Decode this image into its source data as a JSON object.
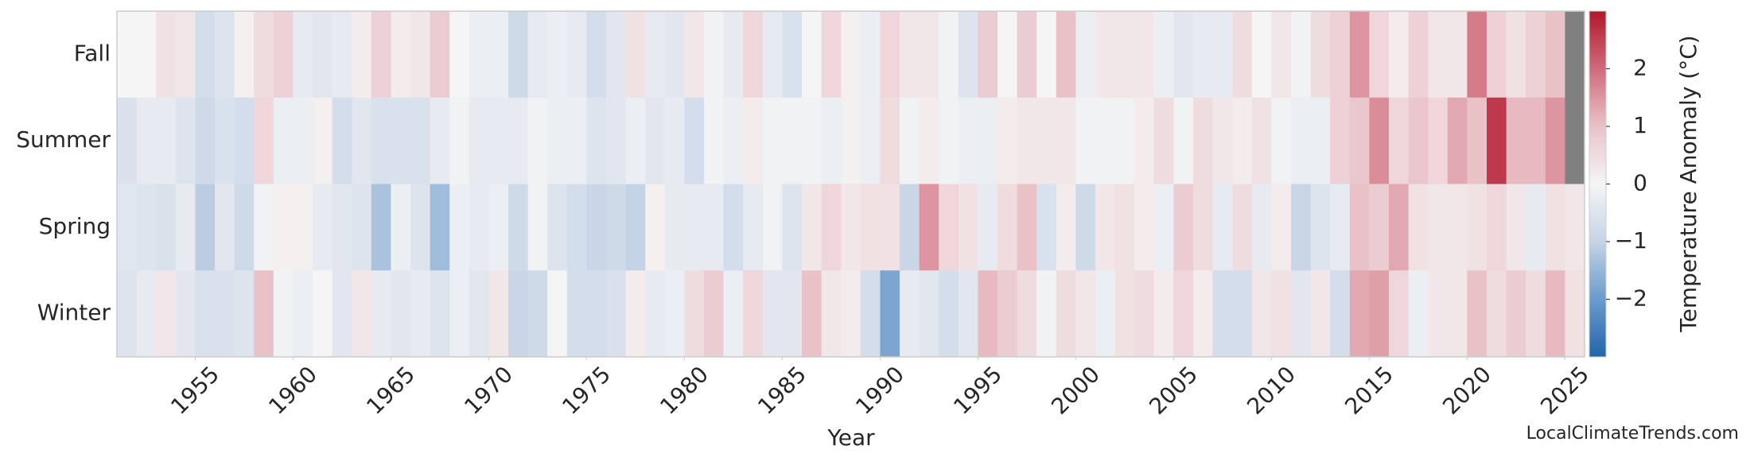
{
  "chart_data": {
    "type": "heatmap",
    "xlabel": "Year",
    "colorbar_label": "Temperature Anomaly (°C)",
    "watermark": "LocalClimateTrends.com",
    "x": [
      1951,
      1952,
      1953,
      1954,
      1955,
      1956,
      1957,
      1958,
      1959,
      1960,
      1961,
      1962,
      1963,
      1964,
      1965,
      1966,
      1967,
      1968,
      1969,
      1970,
      1971,
      1972,
      1973,
      1974,
      1975,
      1976,
      1977,
      1978,
      1979,
      1980,
      1981,
      1982,
      1983,
      1984,
      1985,
      1986,
      1987,
      1988,
      1989,
      1990,
      1991,
      1992,
      1993,
      1994,
      1995,
      1996,
      1997,
      1998,
      1999,
      2000,
      2001,
      2002,
      2003,
      2004,
      2005,
      2006,
      2007,
      2008,
      2009,
      2010,
      2011,
      2012,
      2013,
      2014,
      2015,
      2016,
      2017,
      2018,
      2019,
      2020,
      2021,
      2022,
      2023,
      2024,
      2025
    ],
    "xlim": [
      1951,
      2026
    ],
    "xticks": [
      1955,
      1960,
      1965,
      1970,
      1975,
      1980,
      1985,
      1990,
      1995,
      2000,
      2005,
      2010,
      2015,
      2020,
      2025
    ],
    "rows": [
      {
        "name": "Fall",
        "values": [
          0.0,
          0.0,
          0.4,
          0.3,
          -0.7,
          -0.5,
          0.1,
          0.5,
          0.7,
          -0.3,
          -0.4,
          -0.3,
          0.2,
          0.7,
          0.2,
          0.3,
          0.8,
          0.0,
          -0.2,
          -0.2,
          -0.8,
          -0.3,
          -0.2,
          -0.3,
          -0.7,
          -0.4,
          0.4,
          -0.3,
          -0.4,
          0.3,
          -0.1,
          -0.3,
          0.6,
          -0.3,
          -0.6,
          0.0,
          0.6,
          0.1,
          -0.2,
          0.6,
          0.3,
          0.3,
          -0.1,
          -0.5,
          0.8,
          0.0,
          0.8,
          0.0,
          1.0,
          -0.2,
          0.3,
          0.3,
          0.3,
          -0.2,
          -0.4,
          -0.3,
          -0.3,
          0.5,
          0.0,
          0.3,
          -0.1,
          0.5,
          0.7,
          1.5,
          0.6,
          0.2,
          0.7,
          0.3,
          0.3,
          1.8,
          0.7,
          0.4,
          0.7,
          1.0,
          null
        ]
      },
      {
        "name": "Summer",
        "values": [
          -0.6,
          -0.3,
          -0.3,
          -0.5,
          -0.8,
          -0.6,
          -0.7,
          0.6,
          -0.2,
          -0.2,
          0.1,
          -0.7,
          -0.4,
          -0.6,
          -0.6,
          -0.6,
          -0.3,
          -0.1,
          -0.3,
          -0.3,
          -0.3,
          -0.1,
          -0.2,
          -0.2,
          -0.5,
          -0.4,
          -0.2,
          -0.4,
          -0.3,
          -0.7,
          -0.1,
          -0.2,
          0.2,
          -0.1,
          -0.1,
          -0.1,
          -0.2,
          0.1,
          -0.2,
          0.5,
          -0.1,
          0.2,
          -0.1,
          -0.2,
          -0.2,
          0.2,
          0.3,
          0.3,
          0.3,
          -0.1,
          -0.1,
          -0.1,
          0.2,
          0.5,
          -0.1,
          0.5,
          0.3,
          0.2,
          0.4,
          -0.1,
          -0.2,
          -0.2,
          0.7,
          0.9,
          1.6,
          0.6,
          0.9,
          0.6,
          1.3,
          1.0,
          2.6,
          1.1,
          1.1,
          1.5,
          null
        ]
      },
      {
        "name": "Spring",
        "values": [
          -0.4,
          -0.5,
          -0.6,
          -0.3,
          -1.1,
          -0.4,
          -0.8,
          -0.1,
          0.1,
          0.1,
          -0.3,
          -0.4,
          -0.5,
          -1.3,
          -0.2,
          -0.5,
          -1.4,
          -0.2,
          -0.3,
          -0.2,
          -0.8,
          -0.1,
          -0.5,
          -0.7,
          -0.9,
          -0.8,
          -1.0,
          0.1,
          -0.3,
          -0.3,
          -0.3,
          -0.7,
          -0.3,
          -0.1,
          -0.5,
          0.3,
          0.6,
          0.3,
          0.4,
          0.4,
          -0.9,
          1.5,
          0.6,
          0.4,
          -0.3,
          0.5,
          1.0,
          -0.6,
          0.2,
          -0.8,
          0.3,
          0.4,
          0.2,
          -0.2,
          0.8,
          0.5,
          -0.3,
          0.5,
          -0.3,
          0.2,
          -0.9,
          -0.5,
          -0.3,
          1.0,
          0.8,
          1.3,
          0.4,
          0.3,
          0.3,
          0.4,
          0.6,
          0.3,
          -0.3,
          0.4,
          0.3
        ]
      },
      {
        "name": "Winter",
        "values": [
          -0.5,
          -0.3,
          0.3,
          -0.4,
          -0.6,
          -0.6,
          -0.5,
          1.0,
          -0.1,
          -0.2,
          0.0,
          -0.4,
          0.3,
          -0.3,
          -0.4,
          -0.3,
          -0.5,
          -0.2,
          -0.4,
          0.3,
          -0.9,
          -0.8,
          0.0,
          -0.7,
          -0.7,
          -0.6,
          0.2,
          -0.3,
          -0.2,
          0.5,
          0.8,
          -0.2,
          0.6,
          -0.4,
          -0.4,
          1.0,
          0.3,
          0.2,
          -0.7,
          -1.8,
          -0.3,
          -0.4,
          -0.7,
          -0.4,
          1.1,
          0.8,
          0.5,
          -0.1,
          0.5,
          0.3,
          -0.2,
          0.4,
          0.5,
          0.2,
          0.6,
          0.2,
          -0.7,
          -0.7,
          0.3,
          0.4,
          -0.4,
          0.3,
          -0.7,
          1.3,
          1.4,
          0.6,
          -0.2,
          0.3,
          0.3,
          1.0,
          0.5,
          0.8,
          0.5,
          1.1,
          0.4
        ]
      }
    ],
    "vlim": [
      -3,
      3
    ],
    "colorbar_ticks": [
      {
        "value": -2,
        "label": "−2"
      },
      {
        "value": -1,
        "label": "−1"
      },
      0,
      1,
      2
    ],
    "colorscale": [
      "#2166ac",
      "#6a9bcc",
      "#c5d3e6",
      "#f5f5f5",
      "#e9c2c8",
      "#d06a7a",
      "#b2182b"
    ],
    "missing_color": "#808080"
  }
}
